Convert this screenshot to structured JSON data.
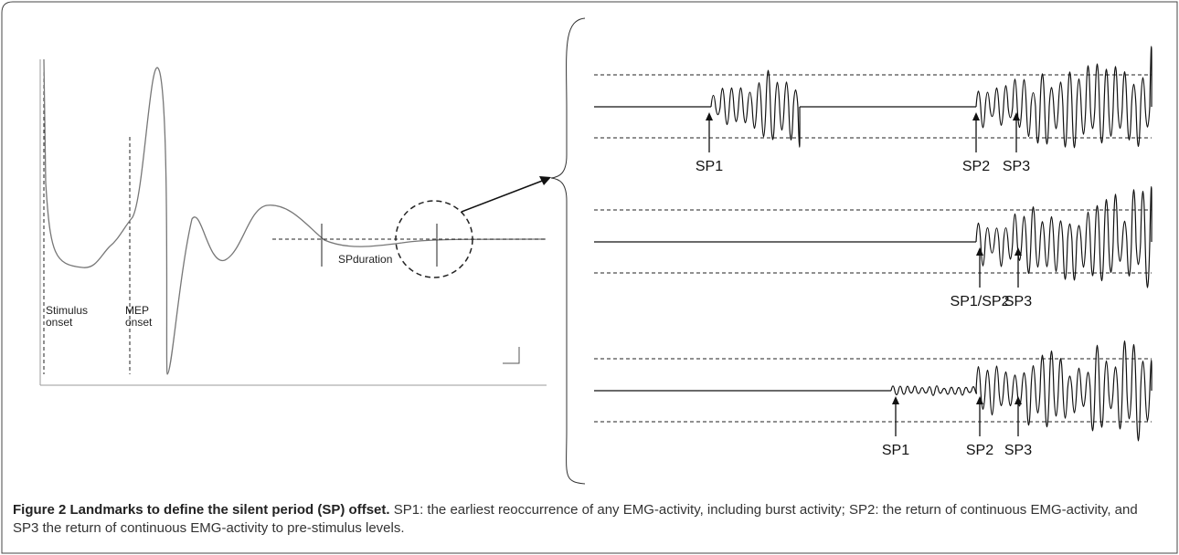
{
  "left_panel": {
    "labels": {
      "stimulus_onset": "Stimulus onset",
      "mep_onset": "MEP onset",
      "sp_duration": "SPduration"
    }
  },
  "right_panel": {
    "traces": [
      {
        "labels": [
          "SP1",
          "SP2",
          "SP3"
        ]
      },
      {
        "labels": [
          "SP1/SP2",
          "SP3"
        ]
      },
      {
        "labels": [
          "SP1",
          "SP2",
          "SP3"
        ]
      }
    ]
  },
  "caption": {
    "title": "Figure 2 Landmarks to define the silent period (SP) offset.",
    "text": "SP1: the earliest reoccurrence of any EMG-activity, including burst activity; SP2: the return of continuous EMG-activity, and SP3 the return of continuous EMG-activity to pre-stimulus levels."
  }
}
